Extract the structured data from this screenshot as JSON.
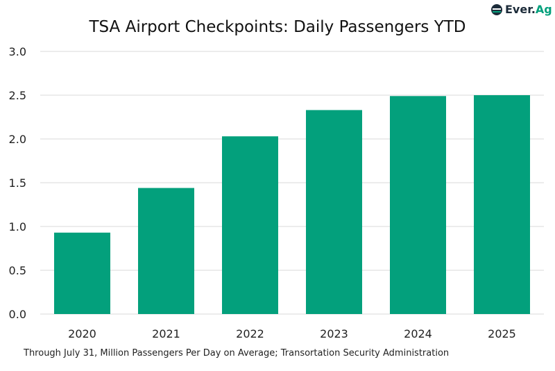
{
  "logo_text": {
    "left": "Ever.",
    "right": "Ag"
  },
  "chart_data": {
    "type": "bar",
    "title": "TSA Airport Checkpoints: Daily Passengers YTD",
    "categories": [
      "2020",
      "2021",
      "2022",
      "2023",
      "2024",
      "2025"
    ],
    "values": [
      0.93,
      1.44,
      2.03,
      2.33,
      2.49,
      2.5
    ],
    "ylim": [
      0,
      3.0
    ],
    "yticks": [
      "0.0",
      "0.5",
      "1.0",
      "1.5",
      "2.0",
      "2.5",
      "3.0"
    ],
    "grid": true,
    "bar_color": "#03a07c",
    "footnote": "Through July 31, Million Passengers Per Day on Average; Transortation Security Administration"
  }
}
